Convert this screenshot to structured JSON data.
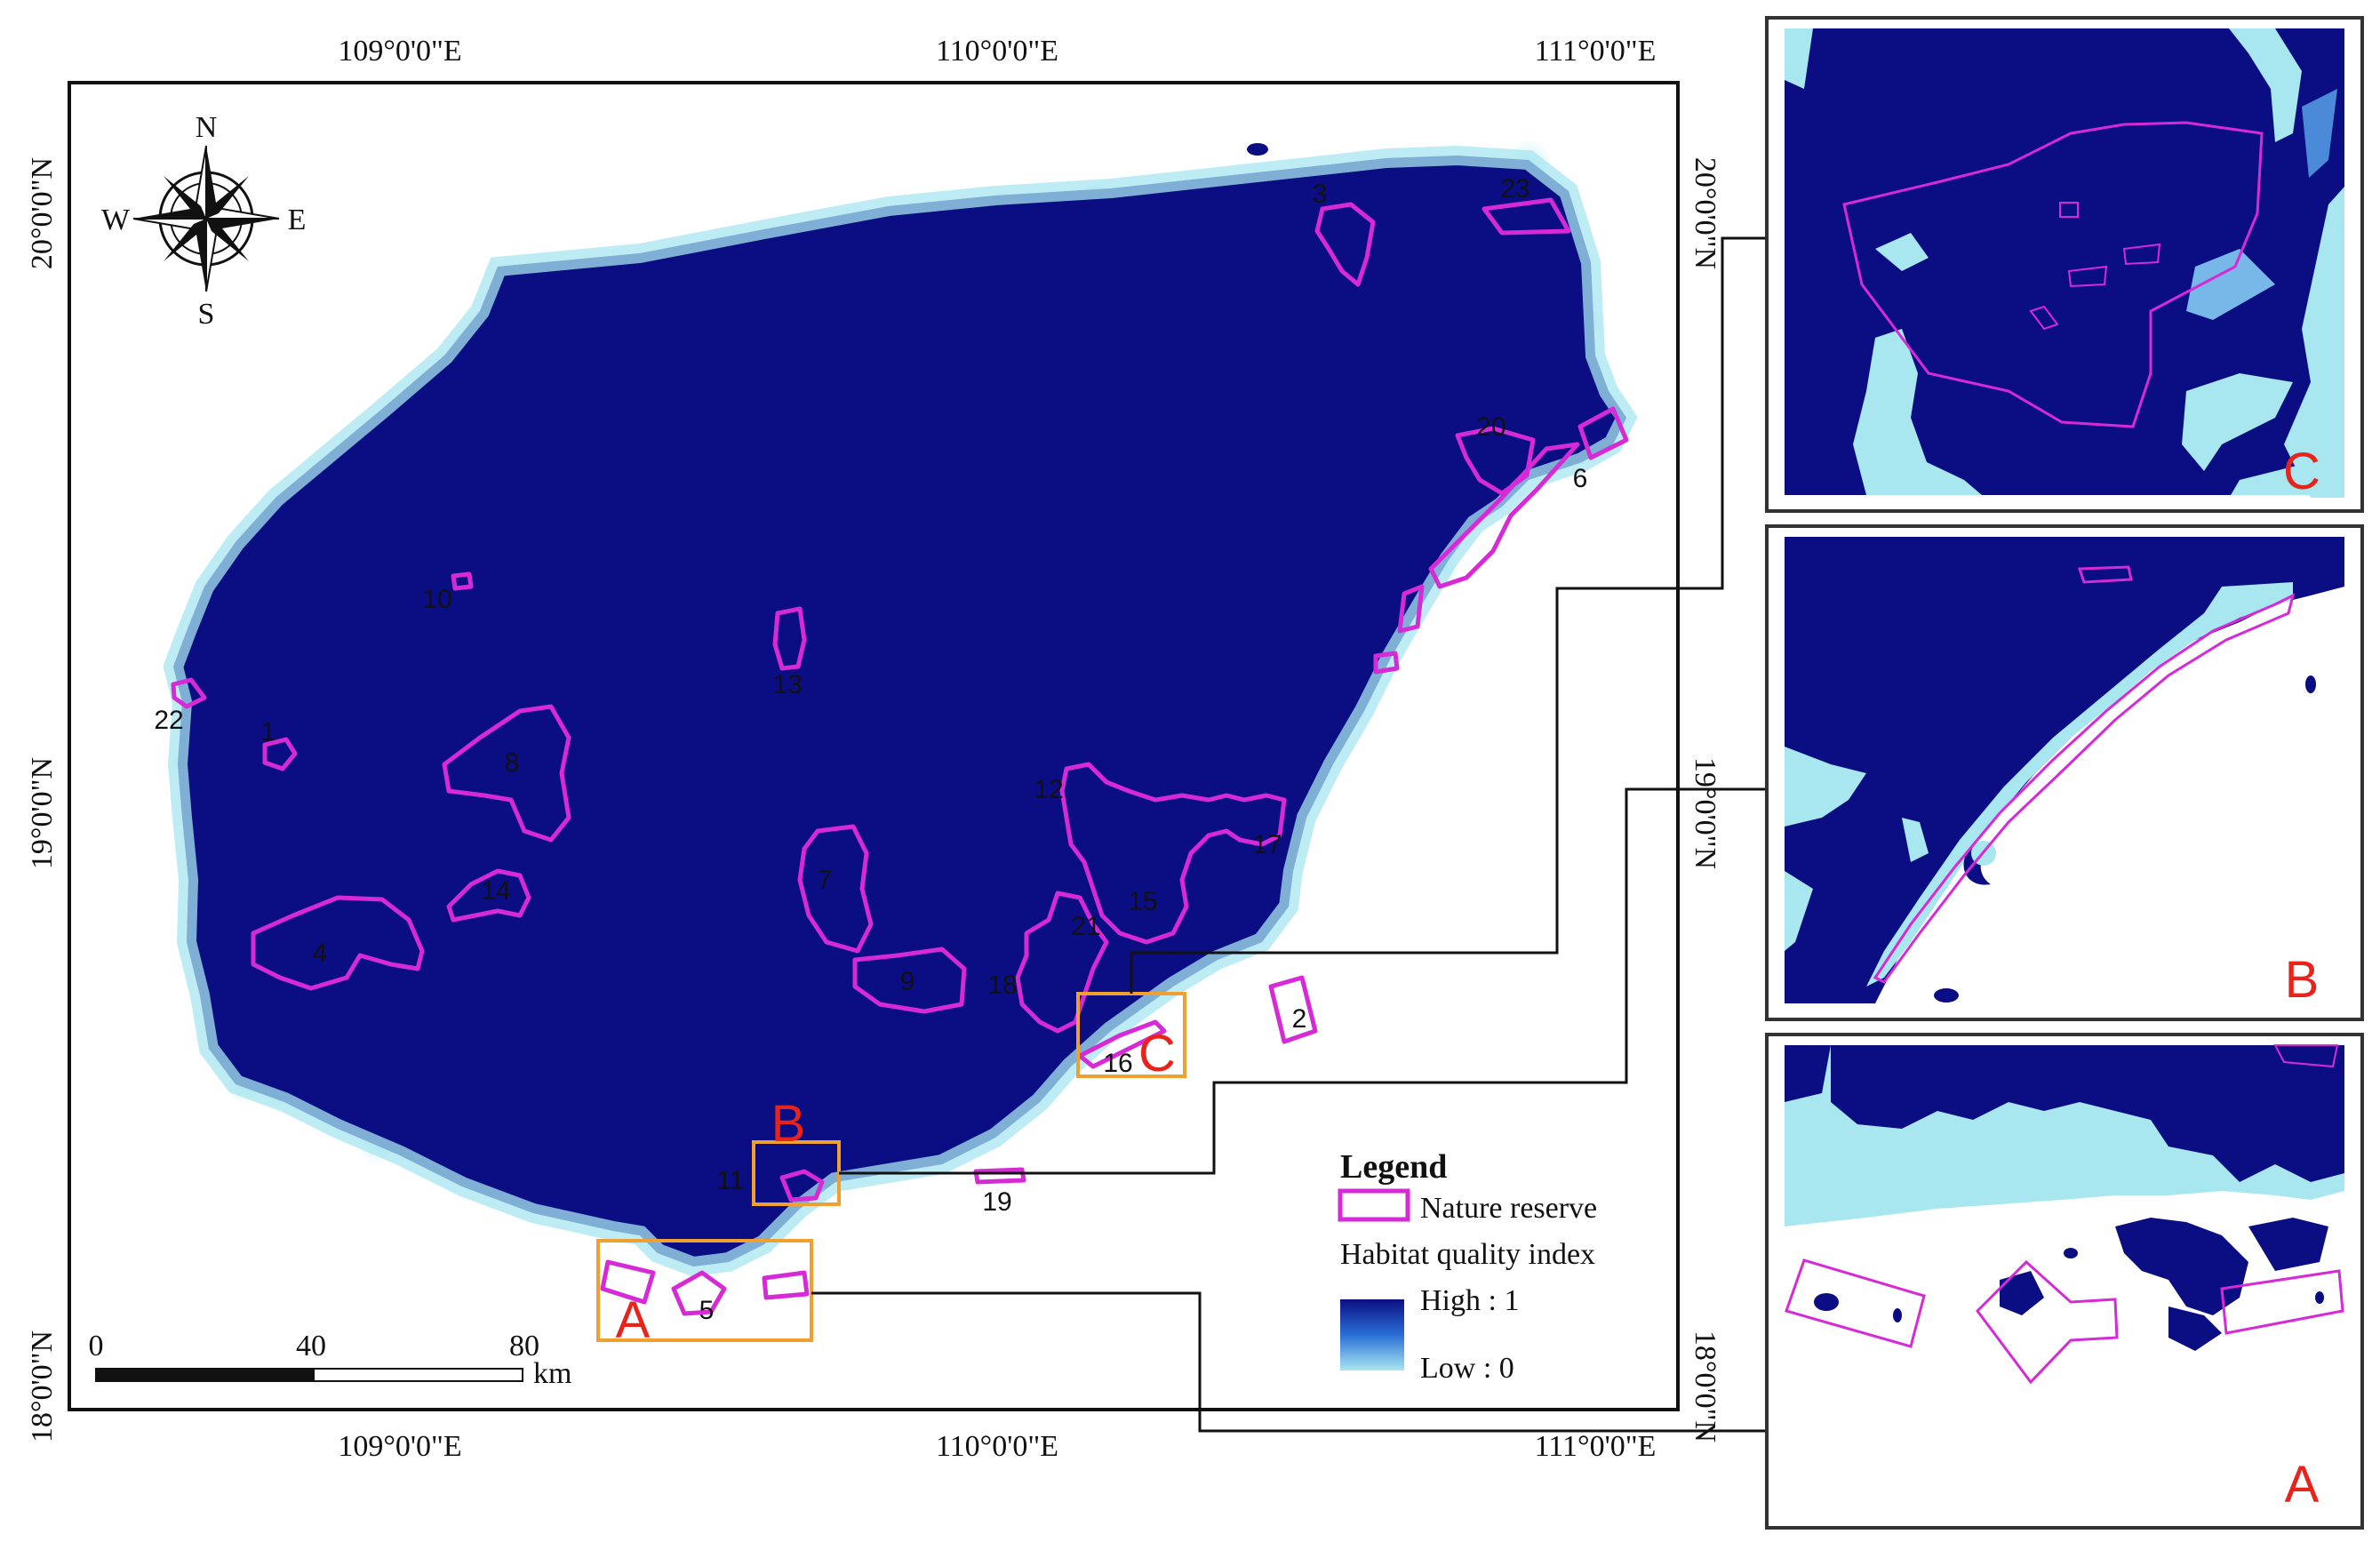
{
  "colors": {
    "high": "#0b0e82",
    "low": "#a8e6f0",
    "reserve": "#d62ad6",
    "inset_box": "#f0a030",
    "inset_letter": "#e8231c"
  },
  "graticule": {
    "lon_labels": [
      "109°0'0\"E",
      "110°0'0\"E",
      "111°0'0\"E"
    ],
    "lat_labels": [
      "20°0'0\"N",
      "19°0'0\"N",
      "18°0'0\"N"
    ]
  },
  "north_arrow": {
    "n": "N",
    "s": "S",
    "e": "E",
    "w": "W"
  },
  "reserves": [
    {
      "id": "1"
    },
    {
      "id": "2"
    },
    {
      "id": "3"
    },
    {
      "id": "4"
    },
    {
      "id": "5"
    },
    {
      "id": "6"
    },
    {
      "id": "7"
    },
    {
      "id": "8"
    },
    {
      "id": "9"
    },
    {
      "id": "10"
    },
    {
      "id": "11"
    },
    {
      "id": "12"
    },
    {
      "id": "13"
    },
    {
      "id": "14"
    },
    {
      "id": "15"
    },
    {
      "id": "16"
    },
    {
      "id": "17"
    },
    {
      "id": "18"
    },
    {
      "id": "19"
    },
    {
      "id": "20"
    },
    {
      "id": "21"
    },
    {
      "id": "22"
    },
    {
      "id": "23"
    }
  ],
  "insets": {
    "a": "A",
    "b": "B",
    "c": "C"
  },
  "scale_bar": {
    "t0": "0",
    "t40": "40",
    "t80": "80",
    "unit": "km"
  },
  "legend": {
    "title": "Legend",
    "reserve_label": "Nature reserve",
    "index_label": "Habitat quality index",
    "high_label": "High : 1",
    "low_label": "Low : 0"
  }
}
